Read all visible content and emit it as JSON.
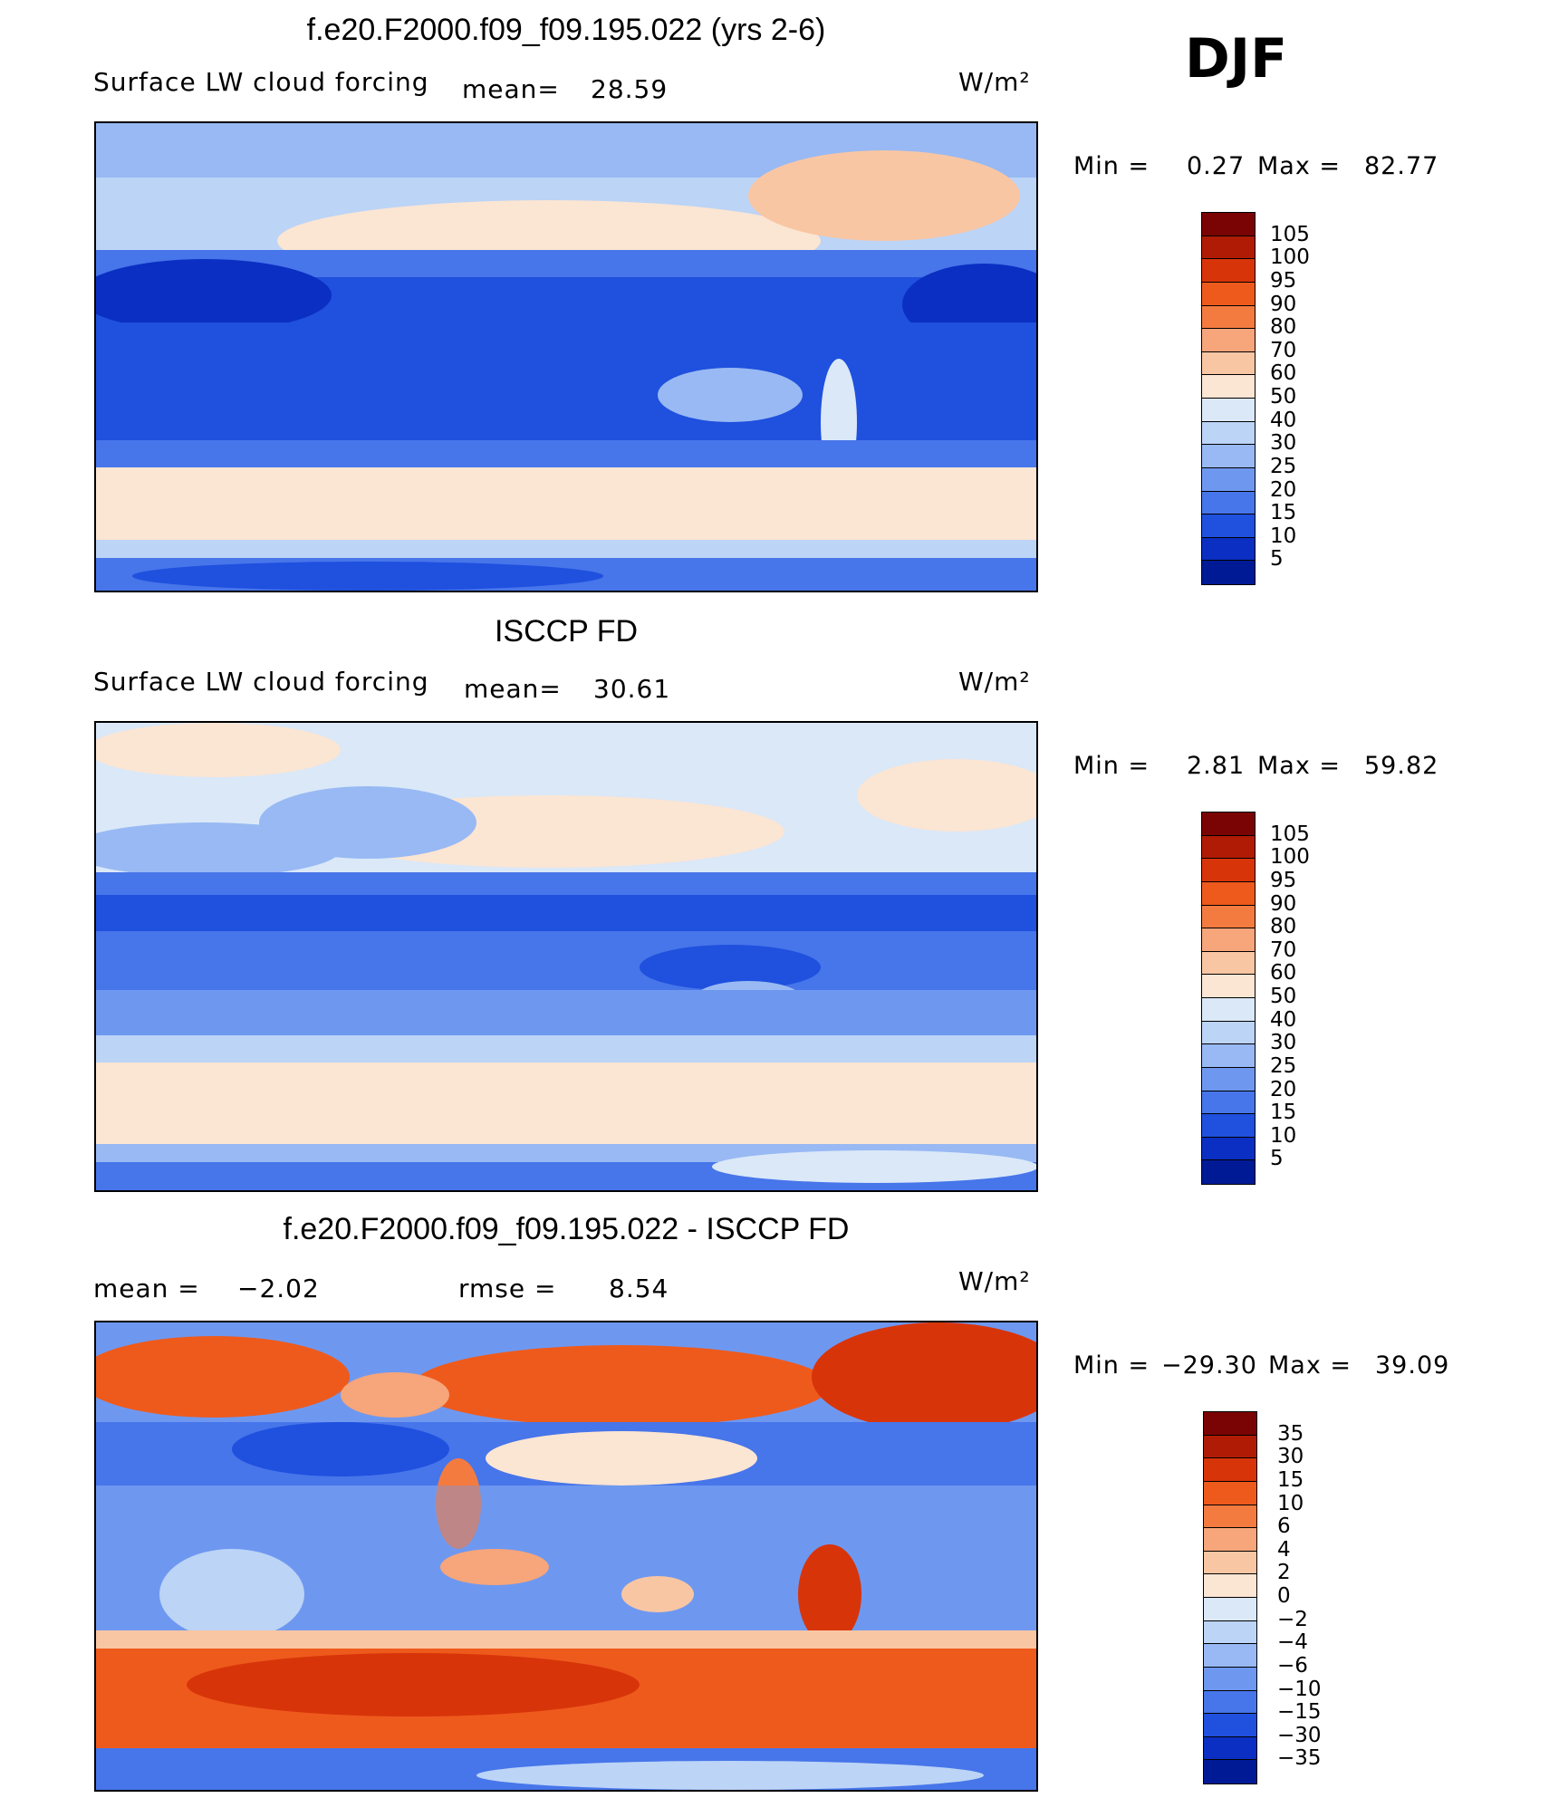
{
  "season": "DJF",
  "panels": [
    {
      "title": "f.e20.F2000.f09_f09.195.022 (yrs 2-6)",
      "variable": "Surface LW cloud forcing",
      "mean_label": "mean=",
      "mean_value": "28.59",
      "units": "W/m²",
      "min_label": "Min =",
      "min_value": "0.27",
      "max_label": "Max =",
      "max_value": "82.77",
      "colorbar_labels": [
        "105",
        "100",
        "95",
        "90",
        "80",
        "70",
        "60",
        "50",
        "40",
        "30",
        "25",
        "20",
        "15",
        "10",
        "5"
      ]
    },
    {
      "title": "ISCCP FD",
      "variable": "Surface LW cloud forcing",
      "mean_label": "mean=",
      "mean_value": "30.61",
      "units": "W/m²",
      "min_label": "Min =",
      "min_value": "2.81",
      "max_label": "Max =",
      "max_value": "59.82",
      "colorbar_labels": [
        "105",
        "100",
        "95",
        "90",
        "80",
        "70",
        "60",
        "50",
        "40",
        "30",
        "25",
        "20",
        "15",
        "10",
        "5"
      ]
    },
    {
      "title": "f.e20.F2000.f09_f09.195.022 - ISCCP FD",
      "mean_label": "mean =",
      "mean_value": "−2.02",
      "rmse_label": "rmse =",
      "rmse_value": "8.54",
      "units": "W/m²",
      "min_label": "Min =",
      "min_value": "−29.30",
      "max_label": "Max =",
      "max_value": "39.09",
      "colorbar_labels": [
        "35",
        "30",
        "15",
        "10",
        "6",
        "4",
        "2",
        "0",
        "−2",
        "−4",
        "−6",
        "−10",
        "−15",
        "−30",
        "−35"
      ]
    }
  ],
  "colorbar_colors": [
    "#7a0403",
    "#b01b05",
    "#d8340a",
    "#ee5a1c",
    "#f47b40",
    "#f7a57a",
    "#f9c6a4",
    "#fbe5d3",
    "#dae8f8",
    "#bcd4f6",
    "#98b9f3",
    "#6e98f0",
    "#4775ea",
    "#1f50de",
    "#0a2fc2",
    "#001a96"
  ]
}
